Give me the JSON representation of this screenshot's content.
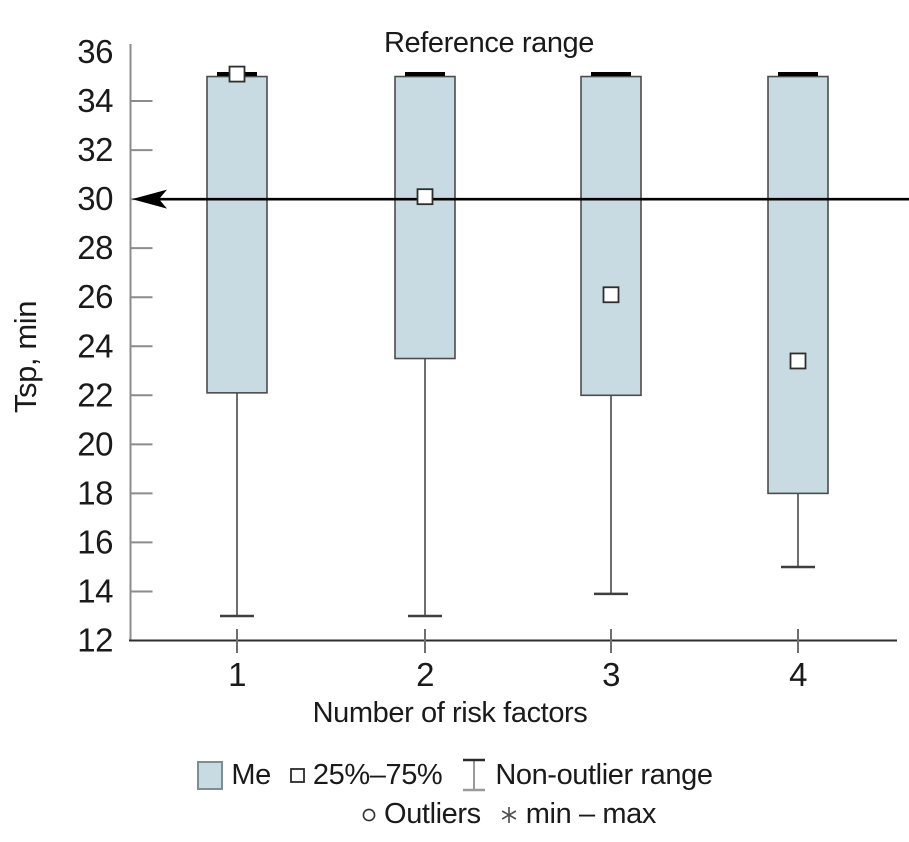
{
  "chart_data": {
    "type": "box",
    "reference_line": {
      "value": 30,
      "label": "Reference range"
    },
    "xlabel": "Number of risk factors",
    "ylabel": "Tsp, min",
    "ylim": [
      12,
      36
    ],
    "y_tick_step": 2,
    "y_tick_labels": [
      "36",
      "34",
      "32",
      "30",
      "28",
      "26",
      "24",
      "22",
      "20",
      "18",
      "16",
      "14",
      "12"
    ],
    "categories": [
      "1",
      "2",
      "3",
      "4"
    ],
    "boxes": [
      {
        "category": "1",
        "q1": 22.1,
        "q3": 35,
        "median": 35.1,
        "whisker_low": 13,
        "whisker_high": 35
      },
      {
        "category": "2",
        "q1": 23.5,
        "q3": 35,
        "median": 30.1,
        "whisker_low": 13,
        "whisker_high": 35
      },
      {
        "category": "3",
        "q1": 22.0,
        "q3": 35,
        "median": 26.1,
        "whisker_low": 13.9,
        "whisker_high": 35
      },
      {
        "category": "4",
        "q1": 18.0,
        "q3": 35,
        "median": 23.4,
        "whisker_low": 15,
        "whisker_high": 35
      }
    ],
    "legend": [
      {
        "icon": "me-box-icon",
        "label": "Me"
      },
      {
        "icon": "percentile-square-icon",
        "label": "25%–75%"
      },
      {
        "icon": "non-outlier-range-icon",
        "label": "Non-outlier range"
      },
      {
        "icon": "outliers-circle-icon",
        "label": "Outliers"
      },
      {
        "icon": "min-max-asterisk-icon",
        "label": "min – max"
      }
    ],
    "legend_layout": "two rows, centered below x-axis title",
    "grid": "off",
    "colors": {
      "box_fill": "#c9dbe2",
      "box_border": "#4c4c4c",
      "whisker": "#6e6e6e",
      "whisker_cap": "#3f3f3f",
      "upper_cap": "#000000",
      "axis": "#8c8c8c",
      "baseline": "#2e2e2e",
      "reference_line": "#000000",
      "text": "#1a1a1a",
      "median_fill": "#ffffff"
    }
  }
}
